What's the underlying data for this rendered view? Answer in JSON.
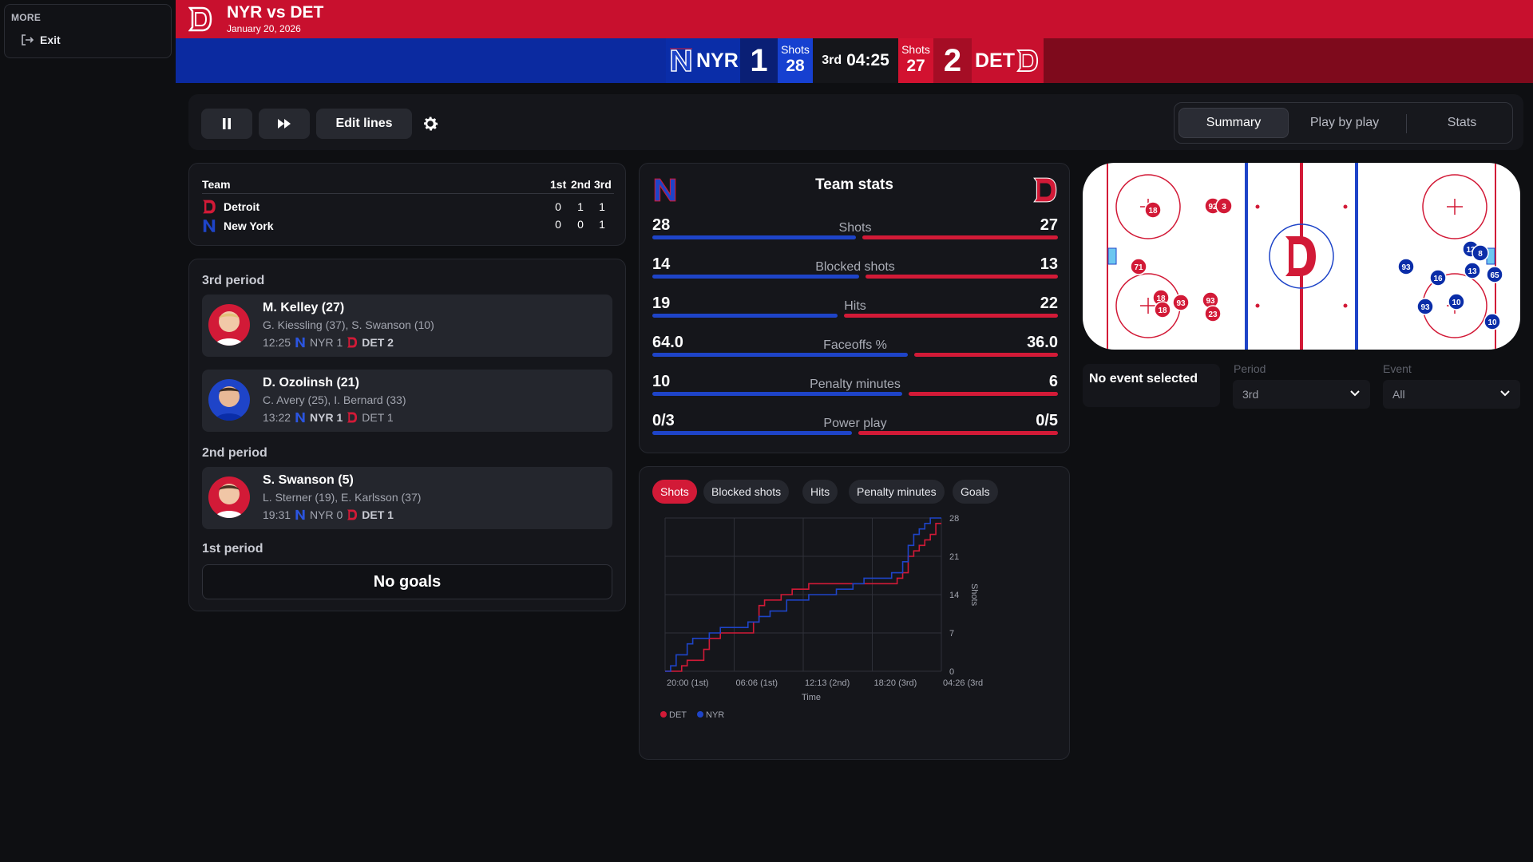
{
  "sidebar": {
    "title": "MORE",
    "exit_label": "Exit"
  },
  "header": {
    "title": "NYR vs DET",
    "date": "January 20, 2026",
    "home_abbr": "NYR",
    "away_abbr": "DET",
    "nyr_score": "1",
    "det_score": "2",
    "shots_label": "Shots",
    "nyr_shots": "28",
    "det_shots": "27",
    "period": "3rd",
    "clock": "04:25"
  },
  "controls": {
    "edit_lines": "Edit lines",
    "tabs": {
      "summary": "Summary",
      "pbp": "Play by play",
      "stats": "Stats"
    }
  },
  "period_table": {
    "team_header": "Team",
    "periods": [
      "1st",
      "2nd",
      "3rd"
    ],
    "rows": [
      {
        "team": "Detroit",
        "values": [
          "0",
          "1",
          "1"
        ]
      },
      {
        "team": "New York",
        "values": [
          "0",
          "0",
          "1"
        ]
      }
    ]
  },
  "goals": {
    "p3_title": "3rd period",
    "p2_title": "2nd period",
    "p1_title": "1st period",
    "no_goals": "No goals",
    "items": [
      {
        "scorer": "M. Kelley (27)",
        "assists": "G. Kiessling (37), S. Swanson (10)",
        "time": "12:25",
        "nyr": "NYR 1",
        "det": "DET 2"
      },
      {
        "scorer": "D. Ozolinsh (21)",
        "assists": "C. Avery (25), I. Bernard (33)",
        "time": "13:22",
        "nyr": "NYR 1",
        "det": "DET 1"
      },
      {
        "scorer": "S. Swanson (5)",
        "assists": "L. Sterner (19), E. Karlsson (37)",
        "time": "19:31",
        "nyr": "NYR 0",
        "det": "DET 1"
      }
    ]
  },
  "team_stats": {
    "title": "Team stats",
    "rows": [
      {
        "label": "Shots",
        "nyr": "28",
        "det": "27"
      },
      {
        "label": "Blocked shots",
        "nyr": "14",
        "det": "13"
      },
      {
        "label": "Hits",
        "nyr": "19",
        "det": "22"
      },
      {
        "label": "Faceoffs %",
        "nyr": "64.0",
        "det": "36.0"
      },
      {
        "label": "Penalty minutes",
        "nyr": "10",
        "det": "6"
      },
      {
        "label": "Power play",
        "nyr": "0/3",
        "det": "0/5"
      }
    ]
  },
  "chart_tabs": [
    "Shots",
    "Blocked shots",
    "Hits",
    "Penalty minutes",
    "Goals"
  ],
  "chart_data": {
    "type": "line",
    "title": "",
    "xlabel": "Time",
    "ylabel": "Shots",
    "x_tick_labels": [
      "20:00 (1st)",
      "06:06 (1st)",
      "12:13 (2nd)",
      "18:20 (3rd)",
      "04:26 (3rd"
    ],
    "y_ticks": [
      0,
      7,
      14,
      21,
      28
    ],
    "ylim": [
      0,
      28
    ],
    "xlim": [
      0,
      1
    ],
    "series": [
      {
        "name": "DET",
        "color": "#d21a37",
        "x": [
          0.0,
          0.04,
          0.06,
          0.08,
          0.14,
          0.16,
          0.2,
          0.3,
          0.32,
          0.34,
          0.36,
          0.38,
          0.42,
          0.46,
          0.52,
          0.56,
          0.62,
          0.7,
          0.72,
          0.8,
          0.84,
          0.86,
          0.88,
          0.9,
          0.92,
          0.94,
          0.96,
          0.98,
          1.0
        ],
        "y": [
          0,
          0,
          1,
          2,
          4,
          6,
          7,
          7,
          9,
          12,
          13,
          13,
          14,
          15,
          16,
          16,
          16,
          16,
          16,
          16,
          17,
          18,
          21,
          22,
          23,
          24,
          25,
          27,
          27
        ]
      },
      {
        "name": "NYR",
        "color": "#1e44c8",
        "x": [
          0.0,
          0.02,
          0.04,
          0.08,
          0.1,
          0.16,
          0.2,
          0.24,
          0.3,
          0.34,
          0.38,
          0.44,
          0.48,
          0.52,
          0.56,
          0.62,
          0.68,
          0.72,
          0.74,
          0.8,
          0.82,
          0.86,
          0.88,
          0.9,
          0.92,
          0.94,
          0.96,
          1.0
        ],
        "y": [
          0,
          1,
          3,
          5,
          6,
          7,
          8,
          8,
          9,
          10,
          11,
          13,
          13,
          14,
          14,
          15,
          16,
          17,
          17,
          17,
          18,
          20,
          23,
          25,
          26,
          27,
          28,
          28
        ]
      }
    ],
    "legend": [
      "DET",
      "NYR"
    ],
    "legend_position": "bottom-left",
    "grid": true
  },
  "rink": {
    "det_players": [
      "18",
      "92",
      "3",
      "71",
      "18",
      "18",
      "93",
      "93",
      "23"
    ],
    "nyr_players": [
      "13",
      "8",
      "93",
      "16",
      "13",
      "65",
      "10",
      "93",
      "10"
    ]
  },
  "event_panel": {
    "no_event": "No event selected",
    "period_label": "Period",
    "period_value": "3rd",
    "event_label": "Event",
    "event_value": "All"
  },
  "colors": {
    "det_red": "#c8102e",
    "nyr_blue": "#0b2aa0",
    "bg": "#0e0f12"
  }
}
